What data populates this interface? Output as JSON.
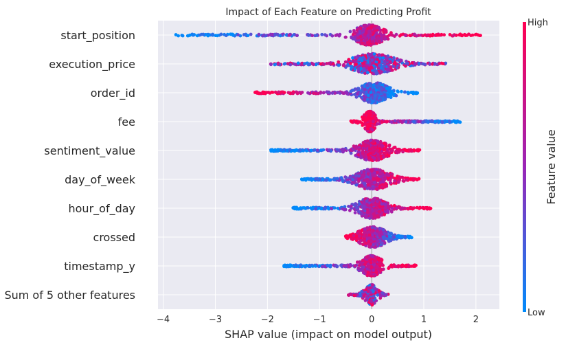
{
  "chart_data": {
    "type": "scatter",
    "subtype": "shap-beeswarm",
    "title": "Impact of Each Feature on Predicting Profit",
    "xlabel": "SHAP value (impact on model output)",
    "xlim": [
      -4.1,
      2.45
    ],
    "xticks": [
      -4,
      -3,
      -2,
      -1,
      0,
      1,
      2
    ],
    "xtick_labels": [
      "−4",
      "−3",
      "−2",
      "−1",
      "0",
      "1",
      "2"
    ],
    "grid": true,
    "colorbar": {
      "label": "Feature value",
      "high_label": "High",
      "low_label": "Low",
      "low_color": "#008bfb",
      "mid_color": "#9a25b7",
      "high_color": "#ff0052"
    },
    "features": [
      {
        "name": "start_position",
        "min": -3.78,
        "max": 2.1,
        "core": [
          -0.35,
          0.25
        ],
        "low_side": "left"
      },
      {
        "name": "execution_price",
        "min": -1.95,
        "max": 1.42,
        "core": [
          -0.45,
          0.5
        ],
        "low_side": "center"
      },
      {
        "name": "order_id",
        "min": -2.25,
        "max": 0.9,
        "core": [
          -0.25,
          0.35
        ],
        "low_side": "right"
      },
      {
        "name": "fee",
        "min": -0.4,
        "max": 1.72,
        "core": [
          -0.12,
          0.05
        ],
        "low_side": "right"
      },
      {
        "name": "sentiment_value",
        "min": -1.95,
        "max": 0.92,
        "core": [
          -0.3,
          0.35
        ],
        "low_side": "left"
      },
      {
        "name": "day_of_week",
        "min": -1.35,
        "max": 0.92,
        "core": [
          -0.35,
          0.4
        ],
        "low_side": "left"
      },
      {
        "name": "hour_of_day",
        "min": -1.52,
        "max": 1.15,
        "core": [
          -0.3,
          0.3
        ],
        "low_side": "left"
      },
      {
        "name": "crossed",
        "min": -0.5,
        "max": 0.78,
        "core": [
          -0.25,
          0.3
        ],
        "low_side": "right"
      },
      {
        "name": "timestamp_y",
        "min": -1.7,
        "max": 0.85,
        "core": [
          -0.2,
          0.2
        ],
        "low_side": "left"
      },
      {
        "name": "Sum of 5 other features",
        "min": -0.45,
        "max": 0.32,
        "core": [
          -0.1,
          0.08
        ],
        "low_side": "center"
      }
    ]
  }
}
